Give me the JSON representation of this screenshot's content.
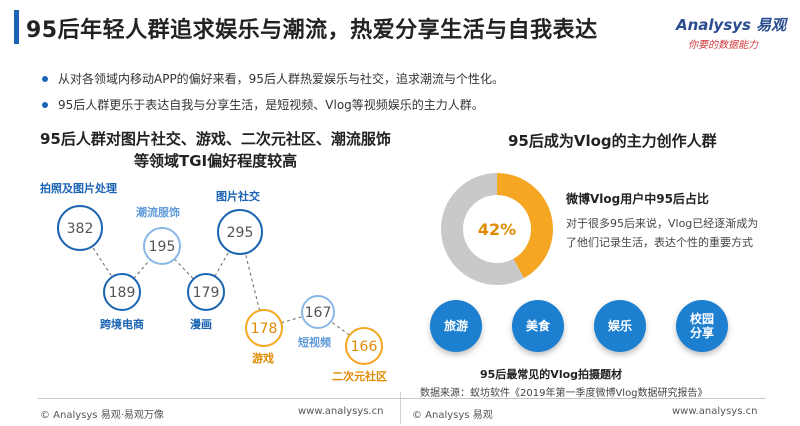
{
  "header": {
    "title": "95后年轻人群追求娱乐与潮流，热爱分享生活与自我表达",
    "logo_brand": "Analysys 易观",
    "logo_slogan": "你要的数据能力"
  },
  "bullets": [
    "从对各领域内移动APP的偏好来看，95后人群热爱娱乐与社交，追求潮流与个性化。",
    "95后人群更乐于表达自我与分享生活，是短视频、Vlog等视频娱乐的主力人群。"
  ],
  "left_chart": {
    "title_line1": "95后人群对图片社交、游戏、二次元社区、潮流服饰",
    "title_line2": "等领域TGI偏好程度较高"
  },
  "right_chart": {
    "title": "95后成为Vlog的主力创作人群",
    "pie_subtitle": "微博Vlog用户中95后占比",
    "pie_description": "对于很多95后来说，Vlog已经逐渐成为了他们记录生活，表达个性的重要方式",
    "topics": [
      "旅游",
      "美食",
      "娱乐",
      "校园分享"
    ],
    "topics_caption": "95后最常见的Vlog拍摄题材",
    "source": "数据来源：蚁坊软件《2019年第一季度微博Vlog数据研究报告》",
    "colors": {
      "highlight": "#f5a623",
      "rest": "#c9c9c9",
      "topic": "#1d7fd0"
    }
  },
  "footer": {
    "left": "© Analysys 易观·易观万像",
    "left_url": "www.analysys.cn",
    "right": "© Analysys 易观",
    "right_url": "www.analysys.cn"
  },
  "chart_data": [
    {
      "type": "scatter",
      "title": "95后人群对图片社交、游戏、二次元社区、潮流服饰等领域TGI偏好程度较高",
      "points": [
        {
          "label": "拍照及图片处理",
          "value": 382,
          "color": "#1a64b3"
        },
        {
          "label": "潮流服饰",
          "value": 195,
          "color": "#8ab8e6"
        },
        {
          "label": "图片社交",
          "value": 295,
          "color": "#1a64b3"
        },
        {
          "label": "跨境电商",
          "value": 189,
          "color": "#1a64b3"
        },
        {
          "label": "漫画",
          "value": 179,
          "color": "#1a64b3"
        },
        {
          "label": "短视频",
          "value": 167,
          "color": "#8ab8e6"
        },
        {
          "label": "游戏",
          "value": 178,
          "color": "#f5a623"
        },
        {
          "label": "二次元社区",
          "value": 166,
          "color": "#f5a623"
        }
      ]
    },
    {
      "type": "pie",
      "title": "微博Vlog用户中95后占比",
      "slices": [
        {
          "label": "95后",
          "value": 42,
          "display": "42%",
          "color": "#f5a623"
        },
        {
          "label": "",
          "value": 58,
          "color": "#c9c9c9"
        }
      ]
    }
  ]
}
